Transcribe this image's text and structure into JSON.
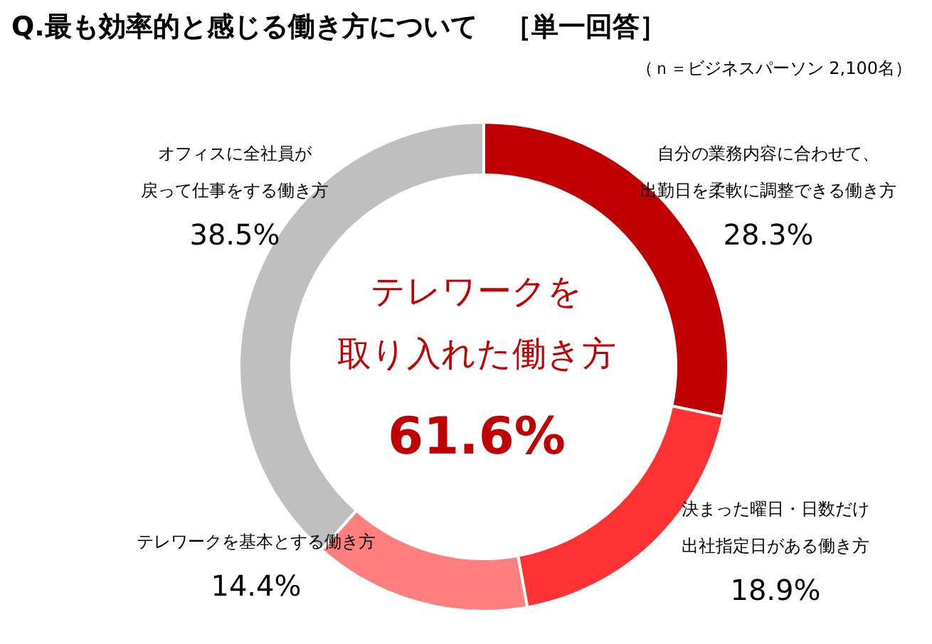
{
  "chart_data": {
    "type": "donut",
    "title": "Q.最も効率的と感じる働き方について　［単一回答］",
    "subtitle": "（ｎ＝ビジネスパーソン 2,100名）",
    "categories": [
      "自分の業務内容に合わせて、出勤日を柔軟に調整できる働き方",
      "決まった曜日・日数だけ出社指定日がある働き方",
      "テレワークを基本とする働き方",
      "オフィスに全社員が戻って仕事をする働き方"
    ],
    "values": [
      28.3,
      18.9,
      14.4,
      38.5
    ],
    "value_labels": [
      "28.3%",
      "18.9%",
      "14.4%",
      "38.5%"
    ],
    "colors": [
      "#c00000",
      "#ff3333",
      "#ff7f7f",
      "#bfbfbf"
    ],
    "annotations": [
      "テレワークを取り入れた働き方",
      "61.6%"
    ]
  }
}
